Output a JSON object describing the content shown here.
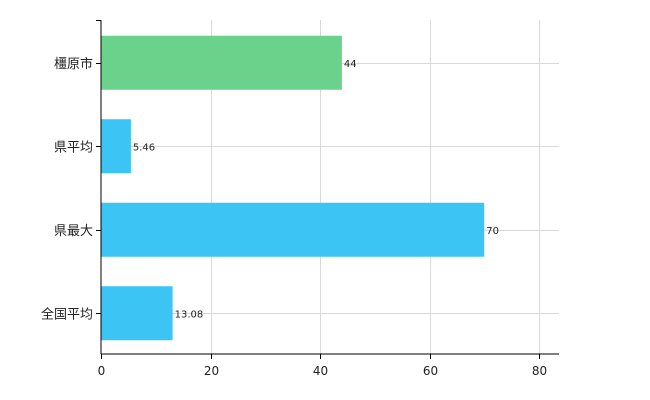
{
  "chart_data": {
    "type": "bar",
    "orientation": "horizontal",
    "categories": [
      "橿原市",
      "県平均",
      "県最大",
      "全国平均"
    ],
    "values": [
      44,
      5.46,
      70,
      13.08
    ],
    "data_labels": [
      "44",
      "5.46",
      "70",
      "13.08"
    ],
    "colors": [
      "#6ad28a",
      "#3cc4f4",
      "#3cc4f4",
      "#3cc4f4"
    ],
    "xlim": [
      0,
      84
    ],
    "xticks": [
      0,
      20,
      40,
      60,
      80
    ],
    "grid": true
  }
}
